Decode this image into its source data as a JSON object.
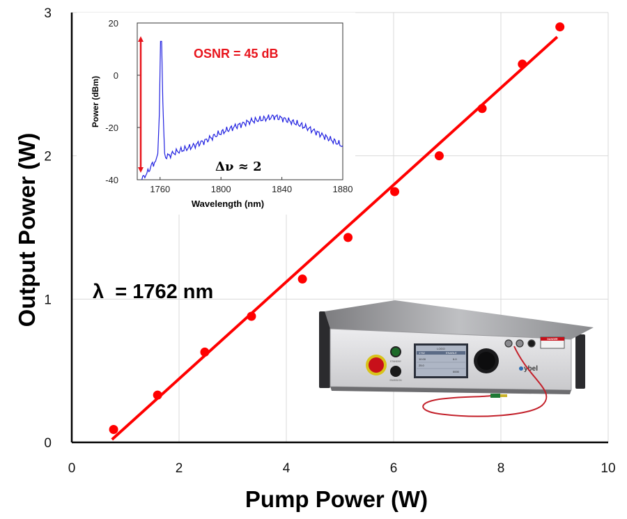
{
  "chart_data": [
    {
      "type": "scatter",
      "xlabel": "Pump Power (W)",
      "ylabel": "Output Power (W)",
      "xlim": [
        0,
        10
      ],
      "ylim": [
        0,
        3
      ],
      "xticks": [
        "0",
        "2",
        "4",
        "6",
        "8",
        "10"
      ],
      "yticks": [
        "0",
        "1",
        "2",
        "3"
      ],
      "grid": true,
      "series": [
        {
          "marker_color": "#ff0000",
          "x": [
            0.78,
            1.6,
            2.48,
            3.35,
            4.3,
            5.15,
            6.02,
            6.85,
            7.65,
            8.4,
            9.1
          ],
          "y": [
            0.09,
            0.33,
            0.63,
            0.88,
            1.14,
            1.43,
            1.75,
            2.0,
            2.33,
            2.64,
            2.9
          ]
        }
      ],
      "fit_line": {
        "color": "#ff0000",
        "x": [
          0.75,
          9.05
        ],
        "y": [
          0.02,
          2.83
        ]
      },
      "annotation": {
        "text": "λ  = 1762 nm"
      }
    },
    {
      "type": "line",
      "xlabel": "Wavelength (nm)",
      "ylabel": "Power (dBm)",
      "xlim": [
        1745,
        1880
      ],
      "ylim": [
        -40,
        20
      ],
      "xticks": [
        "1760",
        "1800",
        "1840",
        "1880"
      ],
      "yticks": [
        "20",
        "0",
        "-20",
        "-40"
      ],
      "series": [
        {
          "color": "#1f1fe0",
          "x": [
            1748,
            1752,
            1755,
            1757,
            1758.5,
            1759.5,
            1760.3,
            1761,
            1761.8,
            1763,
            1765,
            1770,
            1780,
            1790,
            1800,
            1810,
            1820,
            1830,
            1835,
            1840,
            1850,
            1860,
            1870,
            1875,
            1880
          ],
          "y": [
            -40,
            -37,
            -34,
            -33,
            -30,
            -15,
            13,
            13,
            -10,
            -31,
            -31,
            -29.5,
            -27.5,
            -25,
            -22,
            -19.5,
            -17.5,
            -16.5,
            -15.8,
            -16.5,
            -18.5,
            -21,
            -24,
            -25.5,
            -27
          ]
        }
      ],
      "osnr_label": "OSNR = 45 dB",
      "linewidth_label": "Δν ≈ 2",
      "arrow_color": "#e8141c"
    }
  ],
  "photo": {
    "buttons": [
      "STANDBY",
      "EMISSION"
    ],
    "screen_header": "LOGO",
    "screen_rows": [
      "1762",
      "ENABLE",
      "10.00",
      "0.0",
      "25.0",
      "0000"
    ],
    "brand": "ybel",
    "warning_label": "DANGER"
  }
}
